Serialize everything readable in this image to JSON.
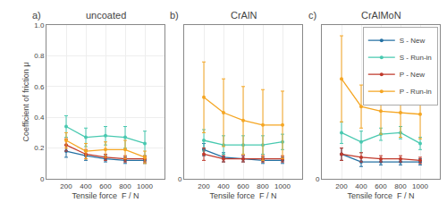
{
  "chart_data": [
    {
      "type": "line",
      "title": "uncoated",
      "annotations": [
        "a)"
      ],
      "x": [
        200,
        400,
        600,
        800,
        1000
      ],
      "xlabel": "Tensile force  F / N",
      "ylabel": "Coefficient of friction μ",
      "xlim": [
        0,
        1200
      ],
      "xticks": [
        200,
        400,
        600,
        800,
        1000
      ],
      "ylim": [
        0,
        1.0
      ],
      "yticks": [
        0,
        0.2,
        0.4,
        0.6,
        0.8,
        {
          "value": 1.0,
          "label": "1.0"
        }
      ],
      "grid": true,
      "series": [
        {
          "name": "S - New",
          "color": "#2471a3",
          "values": [
            0.18,
            0.15,
            0.13,
            0.12,
            0.12
          ],
          "errors": [
            0.04,
            0.03,
            0.02,
            0.02,
            0.02
          ]
        },
        {
          "name": "S - Run-in",
          "color": "#48c9b0",
          "values": [
            0.34,
            0.27,
            0.28,
            0.27,
            0.23
          ],
          "errors": [
            0.07,
            0.06,
            0.06,
            0.07,
            0.08
          ]
        },
        {
          "name": "P - New",
          "color": "#c0392b",
          "values": [
            0.22,
            0.16,
            0.14,
            0.13,
            0.13
          ],
          "errors": [
            0.04,
            0.03,
            0.02,
            0.02,
            0.02
          ]
        },
        {
          "name": "P - Run-in",
          "color": "#f5a623",
          "values": [
            0.25,
            0.18,
            0.19,
            0.19,
            0.14
          ],
          "errors": [
            0.05,
            0.05,
            0.05,
            0.06,
            0.04
          ]
        }
      ]
    },
    {
      "type": "line",
      "title": "CrAlN",
      "annotations": [
        "b)"
      ],
      "x": [
        200,
        400,
        600,
        800,
        1000
      ],
      "xlabel": "Tensile force  F / N",
      "xlim": [
        0,
        1200
      ],
      "xticks": [
        200,
        400,
        600,
        800,
        1000
      ],
      "ylim": [
        0,
        1.0
      ],
      "yticks": [
        0
      ],
      "grid": true,
      "series": [
        {
          "name": "S - New",
          "color": "#2471a3",
          "values": [
            0.19,
            0.14,
            0.13,
            0.12,
            0.12
          ],
          "errors": [
            0.04,
            0.03,
            0.02,
            0.02,
            0.02
          ]
        },
        {
          "name": "S - Run-in",
          "color": "#48c9b0",
          "values": [
            0.25,
            0.22,
            0.22,
            0.22,
            0.24
          ],
          "errors": [
            0.07,
            0.06,
            0.06,
            0.06,
            0.05
          ]
        },
        {
          "name": "P - New",
          "color": "#c0392b",
          "values": [
            0.16,
            0.13,
            0.13,
            0.13,
            0.13
          ],
          "errors": [
            0.04,
            0.02,
            0.02,
            0.02,
            0.02
          ]
        },
        {
          "name": "P - Run-in",
          "color": "#f5a623",
          "values": [
            0.53,
            0.43,
            0.38,
            0.35,
            0.35
          ],
          "errors": [
            0.23,
            0.22,
            0.22,
            0.23,
            0.22
          ]
        }
      ]
    },
    {
      "type": "line",
      "title": "CrAlMoN",
      "annotations": [
        "c)"
      ],
      "x": [
        200,
        400,
        600,
        800,
        1000
      ],
      "xlabel": "Tensile force  F / N",
      "xlim": [
        0,
        1200
      ],
      "xticks": [
        200,
        400,
        600,
        800,
        1000
      ],
      "ylim": [
        0,
        1.0
      ],
      "yticks": [
        0
      ],
      "grid": true,
      "legend": "upper right",
      "series": [
        {
          "name": "S - New",
          "color": "#2471a3",
          "values": [
            0.16,
            0.11,
            0.11,
            0.11,
            0.11
          ],
          "errors": [
            0.04,
            0.03,
            0.02,
            0.02,
            0.02
          ]
        },
        {
          "name": "S - Run-in",
          "color": "#48c9b0",
          "values": [
            0.3,
            0.24,
            0.29,
            0.3,
            0.23
          ],
          "errors": [
            0.07,
            0.07,
            0.04,
            0.04,
            0.04
          ]
        },
        {
          "name": "P - New",
          "color": "#c0392b",
          "values": [
            0.16,
            0.14,
            0.13,
            0.13,
            0.12
          ],
          "errors": [
            0.04,
            0.03,
            0.02,
            0.02,
            0.02
          ]
        },
        {
          "name": "P - Run-in",
          "color": "#f5a623",
          "values": [
            0.65,
            0.47,
            0.44,
            0.43,
            0.42
          ],
          "errors": [
            0.28,
            0.14,
            0.15,
            0.16,
            0.16
          ]
        }
      ]
    }
  ]
}
